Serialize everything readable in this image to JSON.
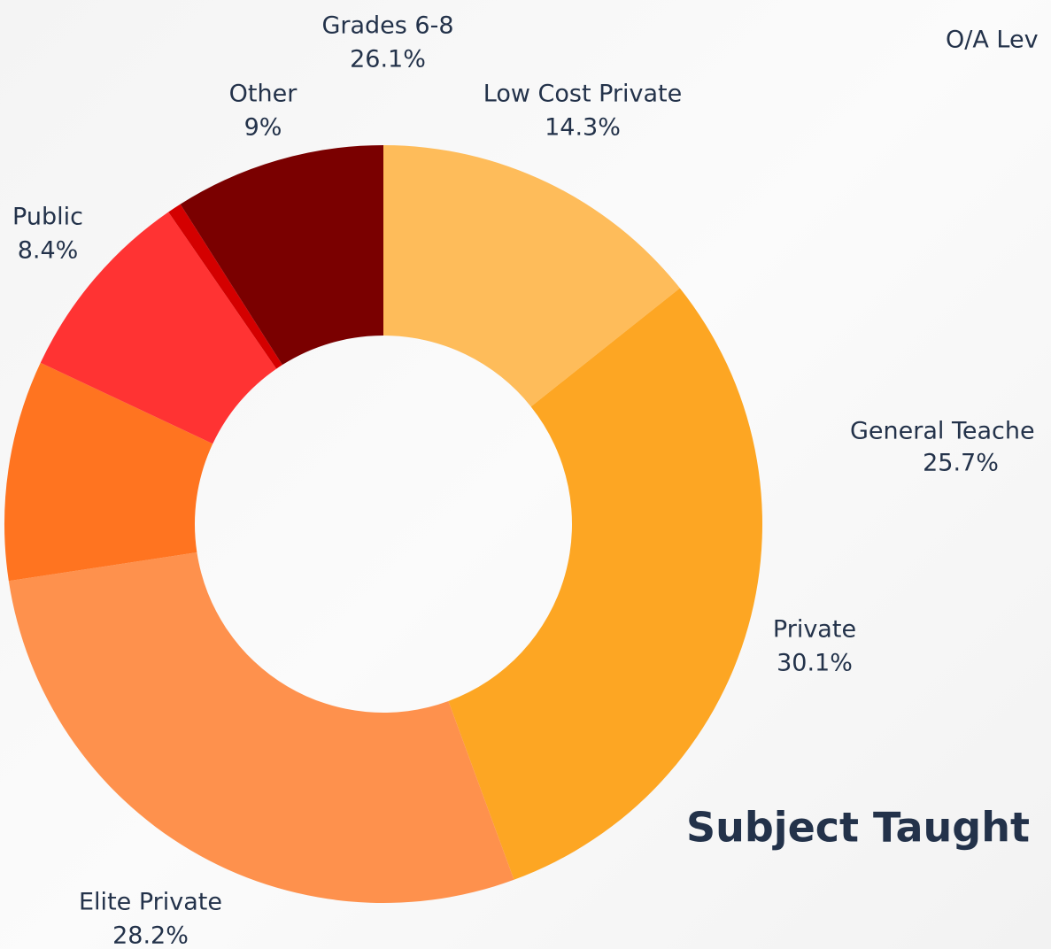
{
  "chart_data": {
    "type": "donut",
    "categories": [
      "Low Cost Private",
      "Private",
      "Elite Private",
      null,
      "Public",
      null,
      "Other"
    ],
    "values": [
      14.3,
      30.1,
      28.2,
      9.4,
      8.4,
      0.6,
      9
    ],
    "value_labels": [
      "14.3%",
      "30.1%",
      "28.2%",
      null,
      "8.4%",
      null,
      "9%"
    ],
    "colors": [
      "#FEBC5A",
      "#FDA623",
      "#FE914D",
      "#FF7420",
      "#FF3333",
      "#D40000",
      "#7A0000"
    ]
  },
  "other_labels": {
    "grades_name": "Grades 6-8",
    "grades_value": "26.1%",
    "oa_level": "O/A Lev",
    "general_name": "General Teache",
    "general_value": "25.7%",
    "subject_title": "Subject Taught"
  }
}
